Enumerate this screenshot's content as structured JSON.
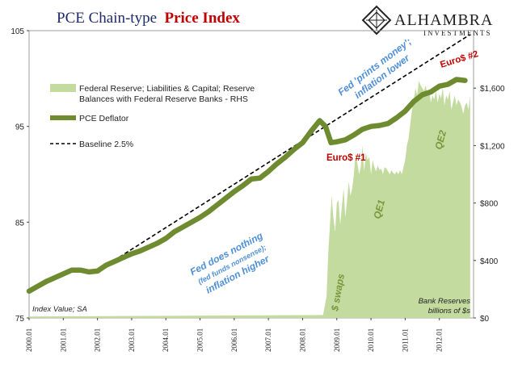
{
  "chart_data": {
    "type": "line",
    "title_part1": "PCE Chain-type",
    "title_part2": "Price Index",
    "logo": {
      "name": "ALHAMBRA",
      "sub": "INVESTMENTS"
    },
    "x_categories": [
      "2000.01",
      "2001.01",
      "2002.01",
      "2003.01",
      "2004.01",
      "2005.01",
      "2006.01",
      "2007.01",
      "2008.01",
      "2009.01",
      "2010.01",
      "2011.01",
      "2012.01"
    ],
    "xlim": [
      2000.0,
      2013.0
    ],
    "y_left": {
      "ticks": [
        "75",
        "85",
        "95",
        "105"
      ],
      "ylim": [
        75,
        105
      ],
      "label_note": "Index Value; SA"
    },
    "y_right": {
      "ticks": [
        "$0",
        "$400",
        "$800",
        "$1,200",
        "$1,600"
      ],
      "ylim": [
        0,
        2000
      ],
      "label_note": [
        "Bank Reserves",
        "billions of $s"
      ]
    },
    "legend": [
      {
        "name": "Federal Reserve; Liabilities & Capital; Reserve Balances with Federal Reserve Banks - RHS",
        "color": "#c4dba0"
      },
      {
        "name": "PCE Deflator",
        "color": "#6e8b30"
      },
      {
        "name": "Baseline 2.5%",
        "color": "#000000"
      }
    ],
    "series": [
      {
        "name": "PCE Deflator",
        "axis": "left",
        "x": [
          2000.0,
          2000.25,
          2000.5,
          2000.75,
          2001.0,
          2001.25,
          2001.5,
          2001.75,
          2002.0,
          2002.25,
          2002.5,
          2002.75,
          2003.0,
          2003.25,
          2003.5,
          2003.75,
          2004.0,
          2004.25,
          2004.5,
          2004.75,
          2005.0,
          2005.25,
          2005.5,
          2005.75,
          2006.0,
          2006.25,
          2006.5,
          2006.75,
          2007.0,
          2007.25,
          2007.5,
          2007.75,
          2008.0,
          2008.25,
          2008.5,
          2008.67,
          2008.83,
          2009.0,
          2009.25,
          2009.5,
          2009.75,
          2010.0,
          2010.25,
          2010.5,
          2010.75,
          2011.0,
          2011.25,
          2011.5,
          2011.75,
          2012.0,
          2012.25,
          2012.5,
          2012.75
        ],
        "values": [
          77.8,
          78.3,
          78.8,
          79.2,
          79.6,
          80.0,
          80.0,
          79.8,
          79.9,
          80.5,
          80.9,
          81.3,
          81.7,
          82.0,
          82.4,
          82.8,
          83.3,
          84.0,
          84.5,
          85.0,
          85.5,
          86.1,
          86.8,
          87.5,
          88.2,
          88.8,
          89.5,
          89.6,
          90.3,
          91.1,
          91.8,
          92.6,
          93.3,
          94.5,
          95.6,
          95.0,
          93.3,
          93.4,
          93.6,
          94.1,
          94.7,
          95.0,
          95.1,
          95.3,
          95.9,
          96.6,
          97.6,
          98.3,
          98.6,
          99.2,
          99.4,
          99.9,
          99.8
        ]
      },
      {
        "name": "Baseline 2.5%",
        "axis": "left",
        "x": [
          2002.0,
          2012.9
        ],
        "values": [
          79.9,
          104.6
        ]
      },
      {
        "name": "Federal Reserve; Liabilities & Capital; Reserve Balances with Federal Reserve Banks - RHS",
        "axis": "right",
        "x": [
          2000.0,
          2008.6,
          2008.7,
          2008.75,
          2008.8,
          2008.85,
          2008.9,
          2008.95,
          2009.0,
          2009.05,
          2009.1,
          2009.15,
          2009.2,
          2009.25,
          2009.3,
          2009.35,
          2009.4,
          2009.45,
          2009.5,
          2009.55,
          2009.6,
          2009.65,
          2009.7,
          2009.75,
          2009.8,
          2009.85,
          2009.9,
          2009.95,
          2010.0,
          2010.05,
          2010.1,
          2010.15,
          2010.2,
          2010.25,
          2010.3,
          2010.35,
          2010.4,
          2010.45,
          2010.5,
          2010.55,
          2010.6,
          2010.65,
          2010.7,
          2010.75,
          2010.8,
          2010.85,
          2010.9,
          2010.95,
          2011.0,
          2011.05,
          2011.1,
          2011.15,
          2011.2,
          2011.25,
          2011.3,
          2011.35,
          2011.4,
          2011.45,
          2011.5,
          2011.55,
          2011.6,
          2011.65,
          2011.7,
          2011.75,
          2011.8,
          2011.85,
          2011.9,
          2011.95,
          2012.0,
          2012.05,
          2012.1,
          2012.15,
          2012.2,
          2012.25,
          2012.3,
          2012.35,
          2012.4,
          2012.45,
          2012.5,
          2012.55,
          2012.6,
          2012.65,
          2012.7,
          2012.75,
          2012.8,
          2012.85,
          2012.9
        ],
        "values": [
          10,
          20,
          150,
          450,
          650,
          850,
          700,
          600,
          800,
          820,
          650,
          780,
          900,
          700,
          820,
          950,
          850,
          900,
          1000,
          1150,
          1080,
          1000,
          1050,
          1200,
          1020,
          1150,
          1100,
          1120,
          1000,
          1100,
          1050,
          1020,
          1060,
          1030,
          1040,
          1000,
          1050,
          1040,
          1020,
          1000,
          1030,
          1010,
          1000,
          1020,
          1000,
          1030,
          1000,
          1050,
          1100,
          1200,
          1250,
          1350,
          1450,
          1520,
          1600,
          1550,
          1650,
          1620,
          1600,
          1580,
          1620,
          1550,
          1600,
          1500,
          1550,
          1520,
          1580,
          1500,
          1560,
          1530,
          1600,
          1480,
          1550,
          1520,
          1580,
          1450,
          1500,
          1550,
          1480,
          1520,
          1500,
          1470,
          1420,
          1480,
          1500,
          1450,
          1550
        ]
      }
    ],
    "annotations": {
      "fed_prints": [
        "Fed 'prints money';",
        "inflation lower"
      ],
      "euro2": "Euro$ #2",
      "euro1": "Euro$ #1",
      "qe2": "QE2",
      "qe1": "QE1",
      "fed_nothing": [
        "Fed does nothing",
        "(fed funds nonsense);",
        "inflation higher"
      ],
      "swaps": "$ swaps"
    },
    "grid": false,
    "legend_placement": "top-left"
  }
}
